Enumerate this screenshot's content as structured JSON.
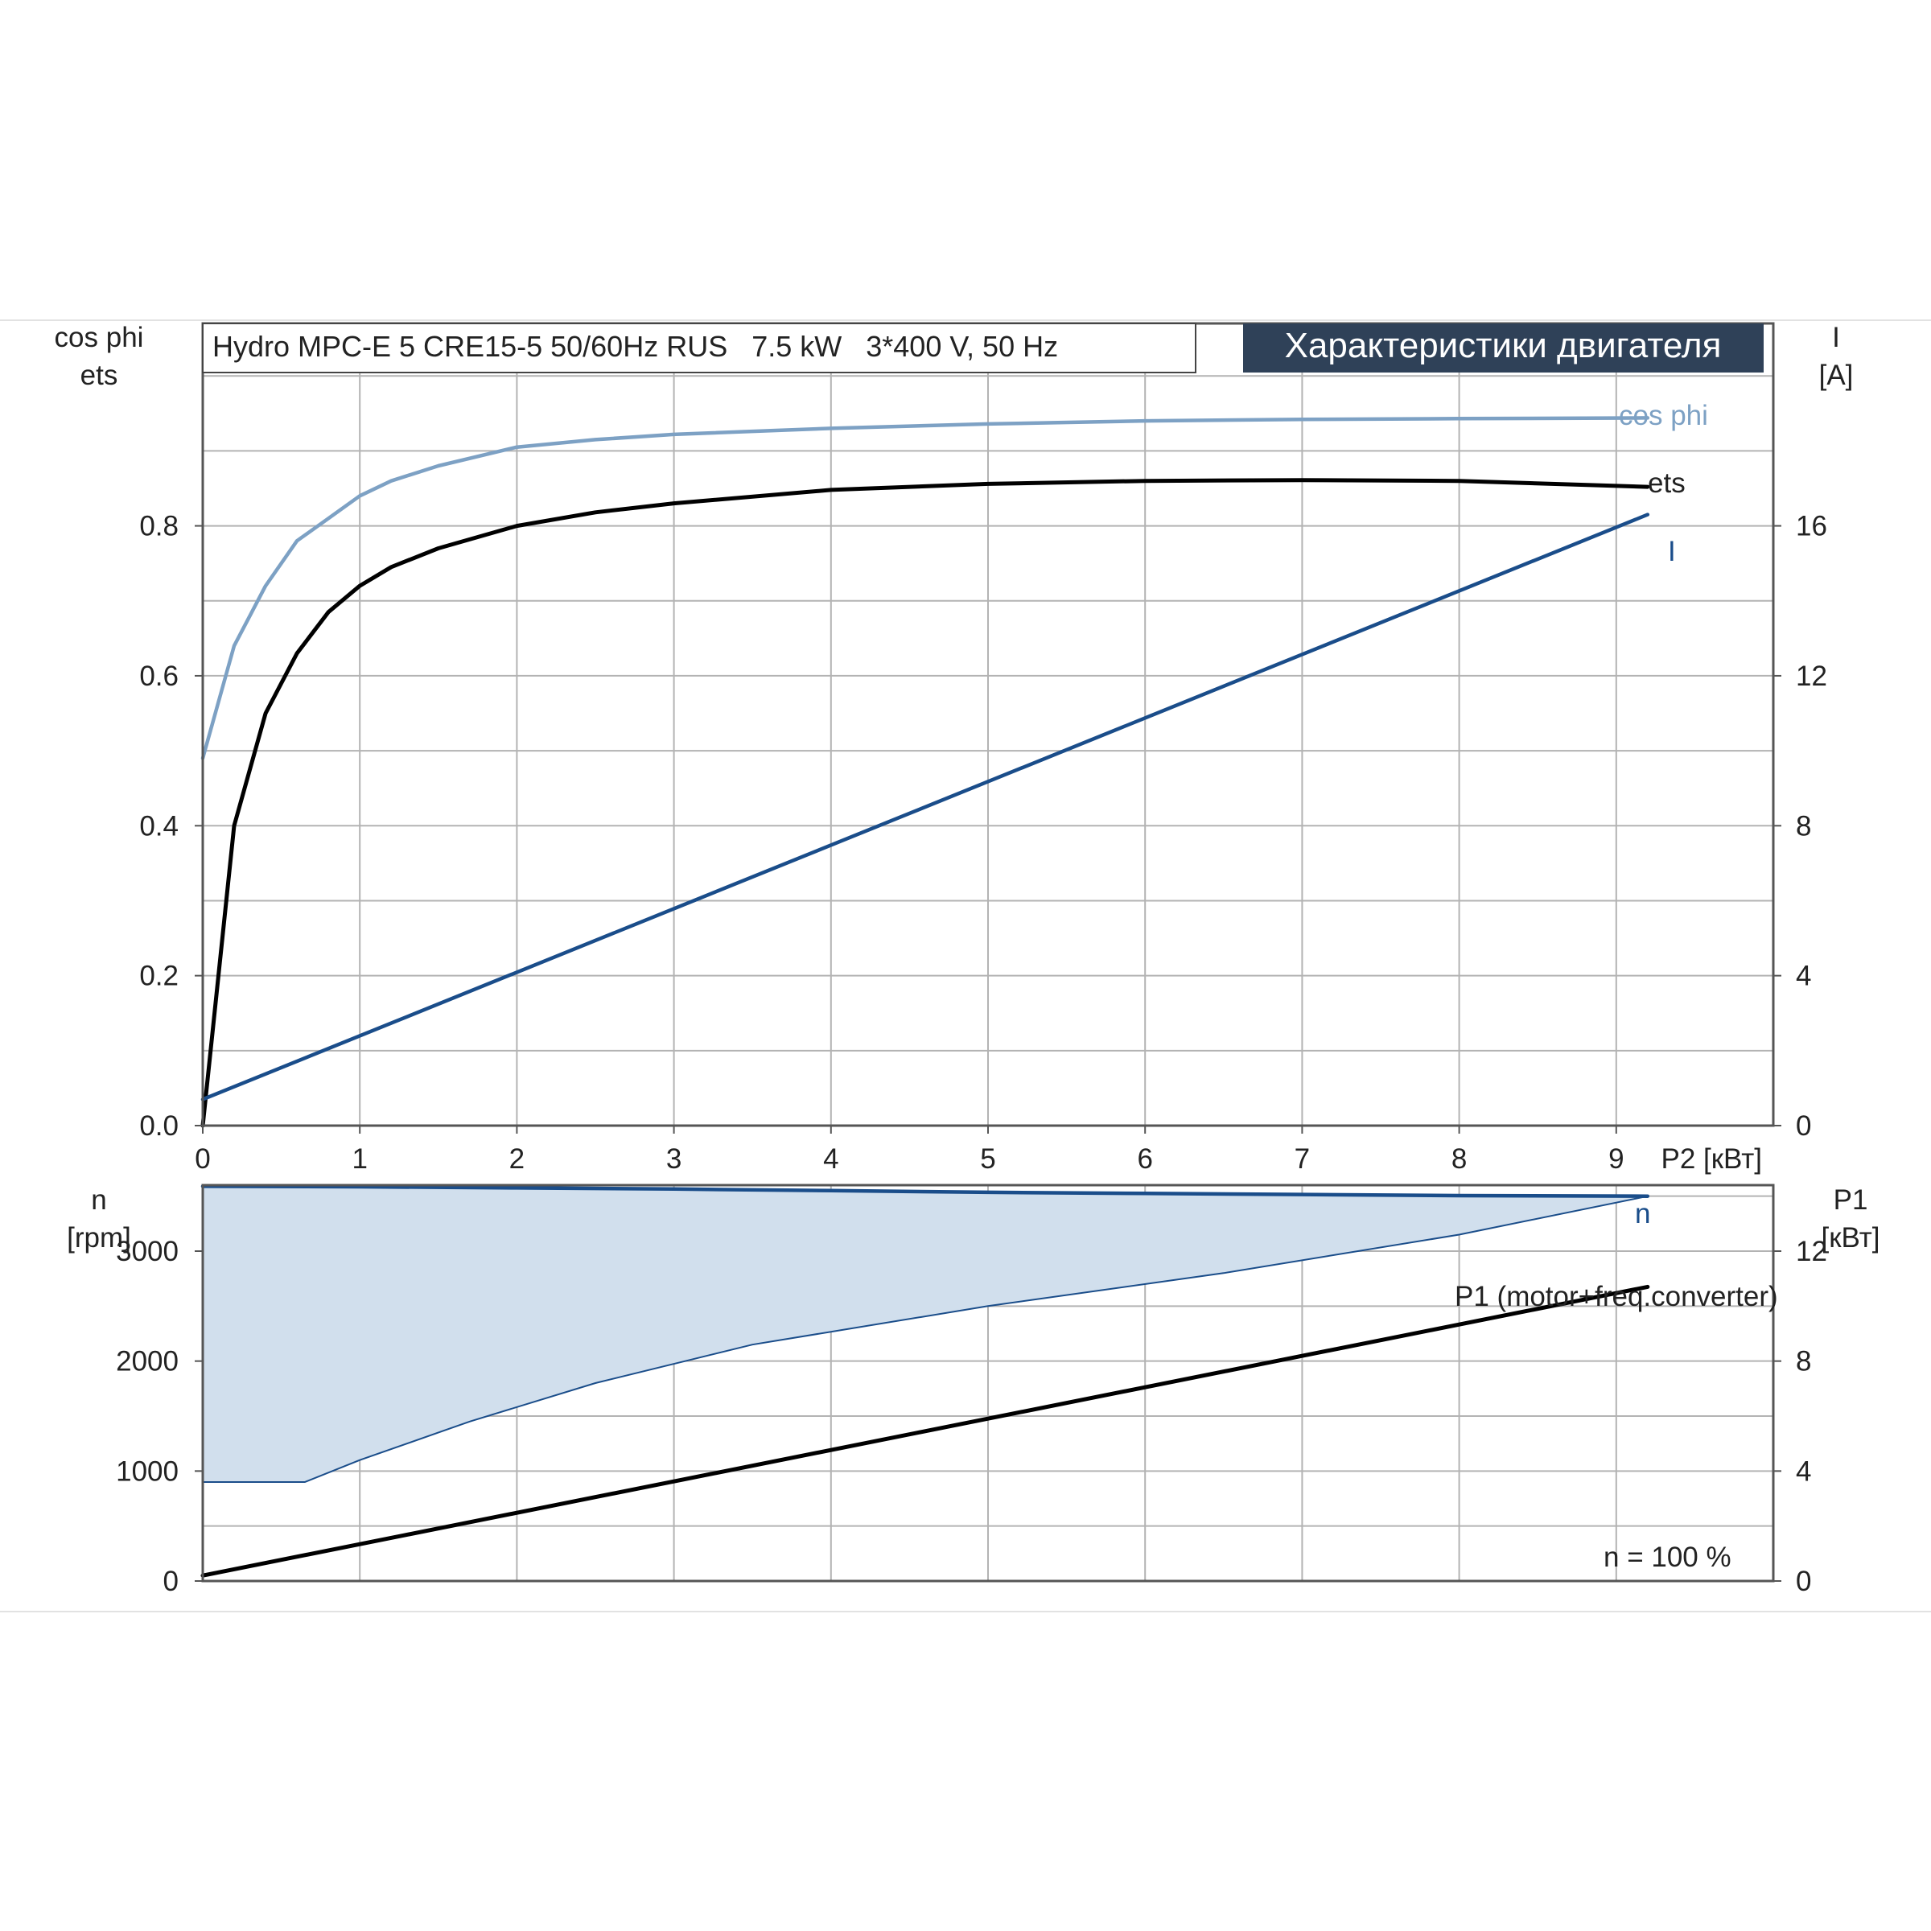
{
  "header": {
    "product_title": "Hydro MPC-E 5 CRE15-5 50/60Hz RUS   7.5 kW   3*400 V, 50 Hz",
    "section_title": "Характеристики двигателя"
  },
  "colors": {
    "cos_phi": "#7da1c4",
    "ets": "#000000",
    "current": "#1a4d8a",
    "speed": "#1a4d8a",
    "speed_band_fill": "#d1dfed",
    "p1": "#000000",
    "title_bg": "#2f4158"
  },
  "chart_data": [
    {
      "type": "line",
      "x_axis": {
        "label": "P2 [кВт]",
        "range": [
          0,
          10
        ],
        "ticks": [
          0,
          1,
          2,
          3,
          4,
          5,
          6,
          7,
          8,
          9
        ]
      },
      "y_left": {
        "label_line1": "cos phi",
        "label_line2": "ets",
        "range": [
          0,
          1.07
        ],
        "ticks": [
          0.0,
          0.2,
          0.4,
          0.6,
          0.8
        ]
      },
      "y_right": {
        "label_line1": "I",
        "label_line2": "[A]",
        "range": [
          0,
          21.4
        ],
        "ticks": [
          0,
          4,
          8,
          12,
          16
        ]
      },
      "grid": true,
      "series": [
        {
          "name": "cos phi",
          "axis": "left",
          "x": [
            0,
            0.2,
            0.4,
            0.6,
            0.8,
            1.0,
            1.2,
            1.5,
            2.0,
            2.5,
            3.0,
            4.0,
            5.0,
            6.0,
            7.0,
            8.0,
            9.2
          ],
          "y": [
            0.49,
            0.64,
            0.72,
            0.78,
            0.81,
            0.84,
            0.86,
            0.88,
            0.905,
            0.915,
            0.922,
            0.93,
            0.936,
            0.94,
            0.942,
            0.943,
            0.944
          ]
        },
        {
          "name": "ets",
          "axis": "left",
          "x": [
            0,
            0.2,
            0.4,
            0.6,
            0.8,
            1.0,
            1.2,
            1.5,
            2.0,
            2.5,
            3.0,
            4.0,
            5.0,
            6.0,
            7.0,
            8.0,
            9.2
          ],
          "y": [
            0.0,
            0.4,
            0.55,
            0.63,
            0.685,
            0.72,
            0.745,
            0.77,
            0.8,
            0.818,
            0.83,
            0.848,
            0.856,
            0.86,
            0.861,
            0.86,
            0.852
          ]
        },
        {
          "name": "I",
          "axis": "right",
          "x": [
            0,
            9.2
          ],
          "y": [
            0.7,
            16.3
          ]
        }
      ]
    },
    {
      "type": "area",
      "x_axis": {
        "range": [
          0,
          10
        ]
      },
      "y_left": {
        "label_line1": "n",
        "label_line2": "[rpm]",
        "range": [
          0,
          3600
        ],
        "ticks": [
          0,
          1000,
          2000,
          3000
        ]
      },
      "y_right": {
        "label_line1": "P1",
        "label_line2": "[кВт]",
        "range": [
          0,
          14.4
        ],
        "ticks": [
          0,
          4,
          8,
          12
        ]
      },
      "grid": true,
      "annotation": "n = 100 %",
      "series": [
        {
          "name": "n",
          "axis": "left",
          "x": [
            0,
            1,
            2,
            3,
            4,
            5,
            6,
            7,
            8,
            9.2
          ],
          "y": [
            3590,
            3585,
            3575,
            3565,
            3550,
            3535,
            3525,
            3515,
            3505,
            3500
          ]
        },
        {
          "axis": "left",
          "x": [
            0,
            0.65,
            1.0,
            1.7,
            2.5,
            3.5,
            5.0,
            6.5,
            8.0,
            9.2
          ],
          "y": [
            900,
            900,
            1100,
            1450,
            1800,
            2150,
            2500,
            2800,
            3150,
            3500
          ]
        },
        {
          "name": "P1 (motor+freq.converter)",
          "axis": "right",
          "x": [
            0,
            9.2
          ],
          "y": [
            0.2,
            10.7
          ]
        }
      ]
    }
  ]
}
